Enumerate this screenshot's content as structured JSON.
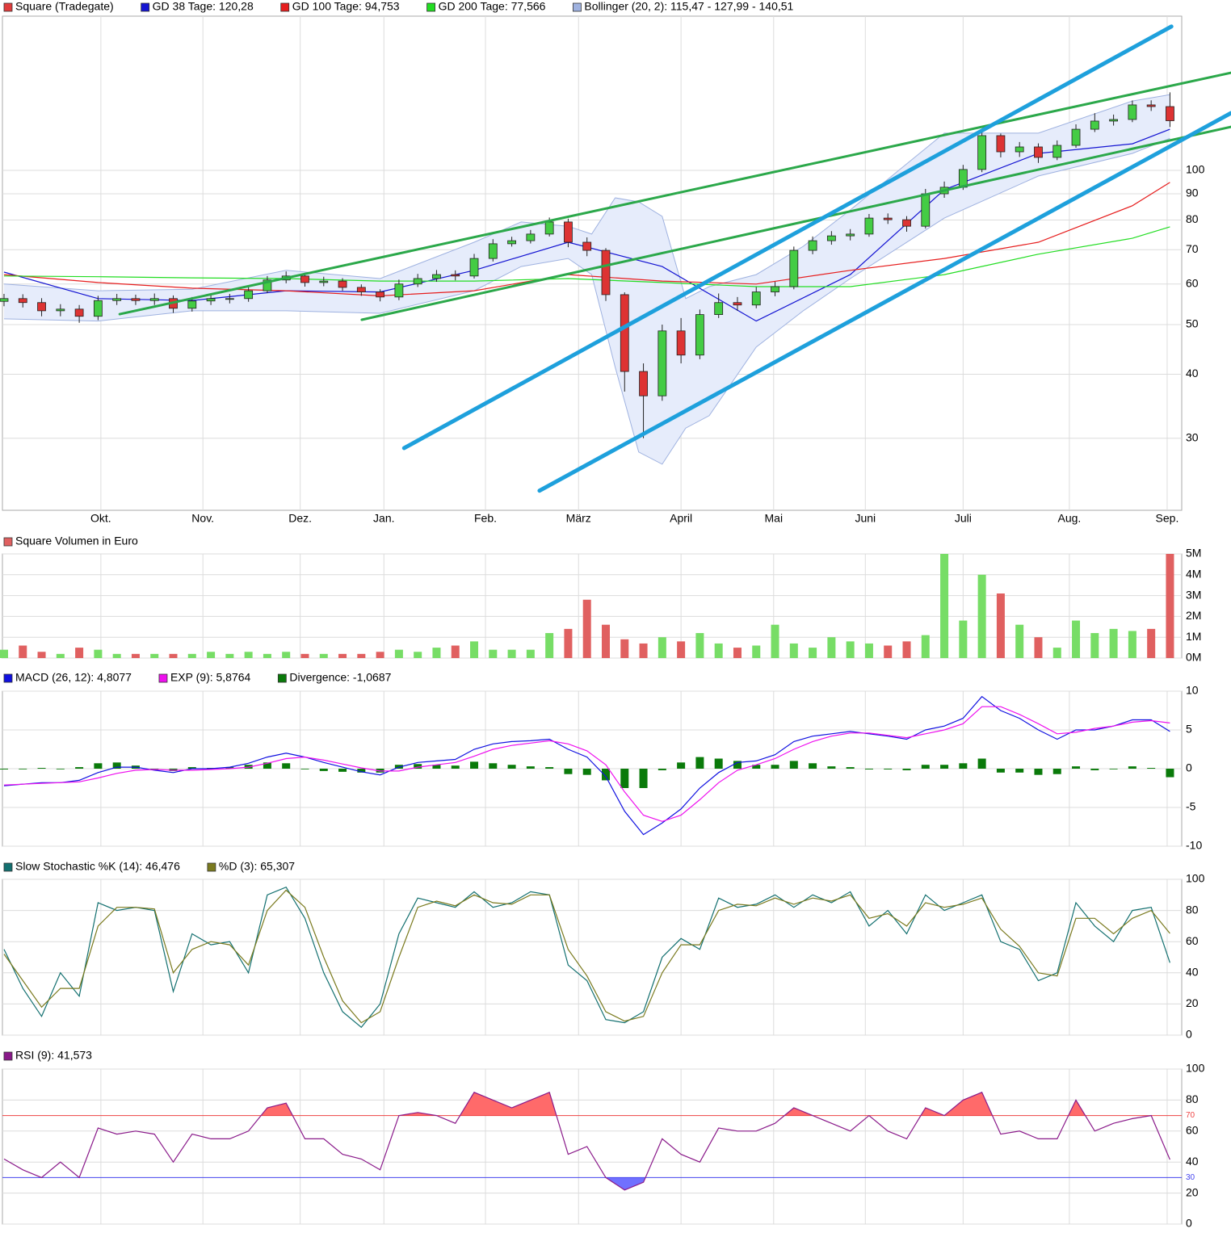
{
  "chart_data": [
    {
      "type": "candlestick",
      "name": "Square (Tradegate)",
      "color": "#e03c3c",
      "up_color": "#44cc44",
      "down_color": "#dd3333",
      "x": [
        0,
        4,
        8,
        12,
        16,
        20,
        24,
        28,
        32,
        36,
        40,
        44,
        48,
        52,
        56,
        60,
        64,
        68,
        72,
        76,
        80,
        84,
        88,
        92,
        96,
        100,
        104,
        108,
        112,
        116,
        120,
        124,
        128,
        132,
        136,
        140,
        144,
        148,
        152,
        156,
        160,
        164,
        168,
        172,
        176,
        180,
        184,
        188,
        192,
        196,
        200,
        204,
        208,
        212,
        216,
        220,
        224,
        228,
        232,
        236,
        240,
        244,
        248
      ],
      "open": [
        55.5,
        56.2,
        55.2,
        53.2,
        53.6,
        51.9,
        55.7,
        56.2,
        55.7,
        56.2,
        53.8,
        55.6,
        56.2,
        56.2,
        58.2,
        61.1,
        62.2,
        60.4,
        60.8,
        59.1,
        57.9,
        56.6,
        60.0,
        61.5,
        62.6,
        62.2,
        67.3,
        71.9,
        72.9,
        75.1,
        79.3,
        72.4,
        69.8,
        57.2,
        40.5,
        36.3,
        48.6,
        43.6,
        52.3,
        55.2,
        54.6,
        57.9,
        59.3,
        69.8,
        72.9,
        74.5,
        75.1,
        80.7,
        80.1,
        77.8,
        90.0,
        92.7,
        100.4,
        116.9,
        108.7,
        111.1,
        106.0,
        111.9,
        120.3,
        124.8,
        125.7,
        134.2,
        133.2
      ],
      "high": [
        57.4,
        57.3,
        56.3,
        54.8,
        54.6,
        56.9,
        57.4,
        57.2,
        57.5,
        57.0,
        56.6,
        57.3,
        57.4,
        59.4,
        62.2,
        63.5,
        63.1,
        62.0,
        61.6,
        59.9,
        58.6,
        61.2,
        62.8,
        63.9,
        63.8,
        68.7,
        73.4,
        74.2,
        76.5,
        80.9,
        80.5,
        74.0,
        70.5,
        57.8,
        42.0,
        50.0,
        51.5,
        53.5,
        57.5,
        56.6,
        59.2,
        60.6,
        71.0,
        74.3,
        76.1,
        76.8,
        82.2,
        82.4,
        81.4,
        92.0,
        95.1,
        102.5,
        119.5,
        118.0,
        113.6,
        112.9,
        114.4,
        123.0,
        129.3,
        128.5,
        136.9,
        137.0,
        142.0
      ],
      "low": [
        54.3,
        54.0,
        51.9,
        51.9,
        50.4,
        51.0,
        54.6,
        54.6,
        54.6,
        52.7,
        53.0,
        54.6,
        55.0,
        55.4,
        57.6,
        60.2,
        59.3,
        59.4,
        58.2,
        56.9,
        55.5,
        55.8,
        59.2,
        60.6,
        61.0,
        61.5,
        66.4,
        71.0,
        72.0,
        74.3,
        70.8,
        68.0,
        55.6,
        37.0,
        30.0,
        35.5,
        42.0,
        42.8,
        51.5,
        53.2,
        53.8,
        56.8,
        58.6,
        68.6,
        71.6,
        73.0,
        74.2,
        78.6,
        75.9,
        77.0,
        88.4,
        91.6,
        99.2,
        106.0,
        106.2,
        103.4,
        104.7,
        110.7,
        118.8,
        122.3,
        124.2,
        130.6,
        121.5
      ],
      "close": [
        56.2,
        55.2,
        53.2,
        53.6,
        51.9,
        55.7,
        56.2,
        55.7,
        56.2,
        53.8,
        55.6,
        56.2,
        56.2,
        58.2,
        61.1,
        62.2,
        60.4,
        60.8,
        59.1,
        57.9,
        56.6,
        60.0,
        61.5,
        62.6,
        62.2,
        67.3,
        71.9,
        72.9,
        75.1,
        79.3,
        72.4,
        69.8,
        57.2,
        40.5,
        36.3,
        48.6,
        43.6,
        52.3,
        55.2,
        54.6,
        57.9,
        59.3,
        69.8,
        72.9,
        74.5,
        75.1,
        80.7,
        80.1,
        77.8,
        90.0,
        92.7,
        100.4,
        116.9,
        108.7,
        111.1,
        106.0,
        111.9,
        120.3,
        124.8,
        125.7,
        134.2,
        133.2,
        125.0
      ],
      "lines": [
        {
          "name": "GD 38 Tage: 120,28",
          "color": "#1414d2",
          "x": [
            0,
            20,
            40,
            60,
            80,
            100,
            120,
            140,
            160,
            180,
            200,
            220,
            240,
            248
          ],
          "values": [
            63.3,
            56.2,
            55.7,
            58.2,
            57.9,
            63.8,
            72.4,
            64.9,
            50.8,
            62.6,
            91.7,
            107.9,
            112.7,
            120.3
          ]
        },
        {
          "name": "GD 100 Tage: 94,753",
          "color": "#e61e1e",
          "x": [
            0,
            20,
            40,
            60,
            80,
            100,
            120,
            140,
            160,
            180,
            200,
            220,
            240,
            248
          ],
          "values": [
            62.6,
            60.4,
            58.9,
            58.2,
            56.9,
            58.2,
            62.6,
            60.8,
            60.0,
            63.8,
            67.3,
            72.4,
            85.3,
            94.75
          ]
        },
        {
          "name": "GD 200 Tage: 77,566",
          "color": "#22dd22",
          "x": [
            0,
            20,
            40,
            60,
            80,
            100,
            120,
            140,
            160,
            180,
            200,
            220,
            240,
            248
          ],
          "values": [
            62.2,
            62.0,
            61.7,
            61.5,
            60.8,
            60.8,
            61.5,
            60.4,
            59.3,
            59.3,
            62.6,
            68.6,
            73.7,
            77.6
          ]
        }
      ],
      "bollinger": {
        "name": "Bollinger (20, 2): 115,47 - 127,99 - 140,51",
        "color": "#9fb2e0",
        "fill": "#e6ecfb",
        "x": [
          0,
          20,
          40,
          60,
          80,
          100,
          110,
          120,
          125,
          130,
          135,
          140,
          145,
          150,
          160,
          170,
          180,
          200,
          220,
          240,
          248
        ],
        "upper": [
          60.0,
          58.2,
          58.6,
          63.8,
          61.5,
          72.4,
          79.3,
          77.8,
          75.1,
          88.4,
          86.8,
          81.3,
          56.2,
          59.3,
          62.6,
          71.1,
          83.7,
          118.2,
          118.2,
          136.6,
          140.51
        ],
        "lower": [
          51.3,
          50.8,
          53.2,
          53.2,
          52.6,
          58.2,
          64.9,
          67.3,
          62.6,
          41.3,
          28.2,
          26.7,
          31.4,
          33.2,
          45.2,
          53.2,
          61.5,
          80.7,
          97.5,
          107.9,
          115.47
        ]
      },
      "trendlines": [
        {
          "color": "#2ba84a",
          "width": 3,
          "x": [
            24.6,
            261
          ],
          "values": [
            52.4,
            155.1
          ]
        },
        {
          "color": "#2ba84a",
          "width": 3,
          "x": [
            76.1,
            261
          ],
          "values": [
            51.1,
            121.6
          ]
        },
        {
          "color": "#1ea0dc",
          "width": 5,
          "x": [
            85.1,
            248.3
          ],
          "values": [
            28.7,
            190.9
          ]
        },
        {
          "color": "#1ea0dc",
          "width": 5,
          "x": [
            113.9,
            261
          ],
          "values": [
            23.7,
            129.4
          ]
        }
      ],
      "log": true,
      "grid": true,
      "ylim": [
        21.7,
        200
      ],
      "yticks": [
        30,
        40,
        50,
        60,
        70,
        80,
        90,
        100
      ],
      "xlim": [
        -0.34,
        250.5
      ],
      "xticks": [
        {
          "value": 20.6,
          "label": "Okt."
        },
        {
          "value": 42.3,
          "label": "Nov."
        },
        {
          "value": 63,
          "label": "Dez."
        },
        {
          "value": 80.8,
          "label": "Jan."
        },
        {
          "value": 102.4,
          "label": "Feb."
        },
        {
          "value": 122.2,
          "label": "März"
        },
        {
          "value": 144,
          "label": "April"
        },
        {
          "value": 163.7,
          "label": "Mai"
        },
        {
          "value": 183.2,
          "label": "Juni"
        },
        {
          "value": 204,
          "label": "Juli"
        },
        {
          "value": 226.6,
          "label": "Aug."
        },
        {
          "value": 247.4,
          "label": "Sep."
        }
      ]
    },
    {
      "type": "bar",
      "title": "Square Volumen in Euro",
      "color": "#e06060",
      "up_color": "#77dd66",
      "down_color": "#e06060",
      "values": [
        0.4,
        0.6,
        0.3,
        0.2,
        0.5,
        0.4,
        0.2,
        0.2,
        0.2,
        0.2,
        0.2,
        0.3,
        0.2,
        0.3,
        0.2,
        0.3,
        0.2,
        0.2,
        0.2,
        0.2,
        0.3,
        0.4,
        0.3,
        0.5,
        0.6,
        0.8,
        0.4,
        0.4,
        0.4,
        1.2,
        1.4,
        2.8,
        1.6,
        0.9,
        0.7,
        1.0,
        0.8,
        1.2,
        0.7,
        0.5,
        0.6,
        1.6,
        0.7,
        0.5,
        1.0,
        0.8,
        0.7,
        0.6,
        0.8,
        1.1,
        5.0,
        1.8,
        4.0,
        3.1,
        1.6,
        1.0,
        0.5,
        1.8,
        1.2,
        1.4,
        1.3,
        1.4,
        5.0
      ],
      "ylim": [
        0,
        5
      ],
      "yticks": [
        {
          "value": 0,
          "label": "0M"
        },
        {
          "value": 1,
          "label": "1M"
        },
        {
          "value": 2,
          "label": "2M"
        },
        {
          "value": 3,
          "label": "3M"
        },
        {
          "value": 4,
          "label": "4M"
        },
        {
          "value": 5,
          "label": "5M"
        }
      ]
    },
    {
      "type": "macd",
      "series": [
        {
          "name": "MACD (26, 12): 4,8077",
          "color": "#1010e0",
          "values": [
            -2.2,
            -2.0,
            -1.8,
            -1.8,
            -1.5,
            -0.5,
            0.2,
            0.2,
            -0.2,
            -0.5,
            0,
            0,
            0.2,
            0.7,
            1.5,
            2.0,
            1.5,
            0.8,
            0.2,
            -0.4,
            -0.8,
            0.2,
            0.8,
            1.0,
            1.2,
            2.5,
            3.2,
            3.5,
            3.6,
            3.8,
            2.5,
            1.5,
            -1.0,
            -5.5,
            -8.5,
            -7.0,
            -5.2,
            -2.5,
            -0.5,
            0.8,
            1.0,
            1.8,
            3.5,
            4.2,
            4.5,
            4.8,
            4.5,
            4.2,
            3.8,
            5.0,
            5.5,
            6.5,
            9.3,
            7.5,
            6.5,
            5.0,
            3.8,
            5.0,
            5.0,
            5.5,
            6.3,
            6.3,
            4.8
          ]
        },
        {
          "name": "EXP (9): 5,8764",
          "color": "#ee10ee",
          "values": [
            -2.1,
            -2.0,
            -1.9,
            -1.8,
            -1.7,
            -1.2,
            -0.6,
            -0.2,
            -0.1,
            -0.2,
            -0.2,
            -0.1,
            0.0,
            0.2,
            0.7,
            1.3,
            1.5,
            1.1,
            0.6,
            0.1,
            -0.3,
            -0.3,
            0.2,
            0.5,
            0.8,
            1.6,
            2.5,
            3.0,
            3.3,
            3.6,
            3.2,
            2.3,
            0.5,
            -3.0,
            -6.0,
            -6.8,
            -6.0,
            -4.0,
            -1.8,
            -0.2,
            0.5,
            1.3,
            2.5,
            3.5,
            4.2,
            4.6,
            4.6,
            4.3,
            4.0,
            4.5,
            5.0,
            5.8,
            8.0,
            8.0,
            7.0,
            5.8,
            4.5,
            4.7,
            5.2,
            5.5,
            6.0,
            6.2,
            5.9
          ]
        },
        {
          "name": "Divergence: -1,0687",
          "color": "#0a7a0a",
          "values": [
            -0.1,
            0.0,
            0.1,
            0.0,
            0.2,
            0.7,
            0.8,
            0.4,
            -0.1,
            -0.3,
            0.2,
            0.1,
            0.2,
            0.5,
            0.8,
            0.7,
            0.0,
            -0.3,
            -0.4,
            -0.5,
            -0.5,
            0.5,
            0.6,
            0.5,
            0.4,
            0.9,
            0.7,
            0.5,
            0.3,
            0.2,
            -0.7,
            -0.8,
            -1.5,
            -2.5,
            -2.5,
            -0.2,
            0.8,
            1.5,
            1.3,
            1.0,
            0.5,
            0.5,
            1.0,
            0.7,
            0.3,
            0.2,
            -0.1,
            -0.1,
            -0.2,
            0.5,
            0.5,
            0.7,
            1.3,
            -0.5,
            -0.5,
            -0.8,
            -0.7,
            0.3,
            -0.2,
            0.0,
            0.3,
            0.1,
            -1.1
          ]
        }
      ],
      "ylim": [
        -10,
        10
      ],
      "yticks": [
        -10,
        -5,
        0,
        5,
        10
      ]
    },
    {
      "type": "line",
      "series": [
        {
          "name": "Slow Stochastic %K (14): 46,476",
          "color": "#137070",
          "values": [
            55,
            30,
            12,
            40,
            25,
            85,
            80,
            82,
            80,
            28,
            65,
            58,
            60,
            40,
            90,
            95,
            75,
            40,
            15,
            5,
            20,
            65,
            88,
            85,
            82,
            92,
            82,
            85,
            92,
            90,
            45,
            35,
            10,
            8,
            15,
            50,
            62,
            55,
            88,
            82,
            84,
            90,
            82,
            90,
            85,
            92,
            70,
            80,
            65,
            90,
            80,
            85,
            90,
            60,
            55,
            35,
            40,
            85,
            70,
            60,
            80,
            82,
            46.5
          ]
        },
        {
          "name": "%D (3): 65,307",
          "color": "#7a7a1e",
          "values": [
            52,
            35,
            18,
            30,
            30,
            70,
            82,
            82,
            81,
            40,
            55,
            60,
            58,
            45,
            80,
            93,
            82,
            50,
            22,
            8,
            15,
            50,
            82,
            86,
            83,
            90,
            85,
            84,
            90,
            90,
            55,
            38,
            15,
            9,
            12,
            40,
            58,
            58,
            80,
            84,
            83,
            88,
            84,
            88,
            86,
            90,
            75,
            78,
            70,
            85,
            82,
            84,
            88,
            68,
            57,
            40,
            38,
            75,
            75,
            65,
            75,
            80,
            65.3
          ]
        }
      ],
      "ylim": [
        0,
        100
      ],
      "yticks": [
        0,
        20,
        40,
        60,
        80,
        100
      ]
    },
    {
      "type": "rsi",
      "series": [
        {
          "name": "RSI (9): 41,573",
          "color": "#8a1a8a",
          "values": [
            42,
            35,
            30,
            40,
            30,
            62,
            58,
            60,
            58,
            40,
            58,
            55,
            55,
            60,
            75,
            78,
            55,
            55,
            45,
            42,
            35,
            70,
            72,
            70,
            65,
            85,
            80,
            75,
            80,
            85,
            45,
            50,
            30,
            22,
            27,
            55,
            45,
            40,
            62,
            60,
            60,
            65,
            75,
            70,
            65,
            60,
            70,
            60,
            55,
            75,
            70,
            80,
            85,
            58,
            60,
            55,
            55,
            80,
            60,
            65,
            68,
            70,
            41.6
          ]
        }
      ],
      "levels": [
        {
          "value": 70,
          "color": "#ee4444",
          "fill": "#ff6a6a",
          "side": "above"
        },
        {
          "value": 30,
          "color": "#4444ee",
          "fill": "#7070ff",
          "side": "below"
        }
      ],
      "ylim": [
        0,
        100
      ],
      "yticks": [
        0,
        20,
        40,
        60,
        80,
        100
      ]
    }
  ]
}
